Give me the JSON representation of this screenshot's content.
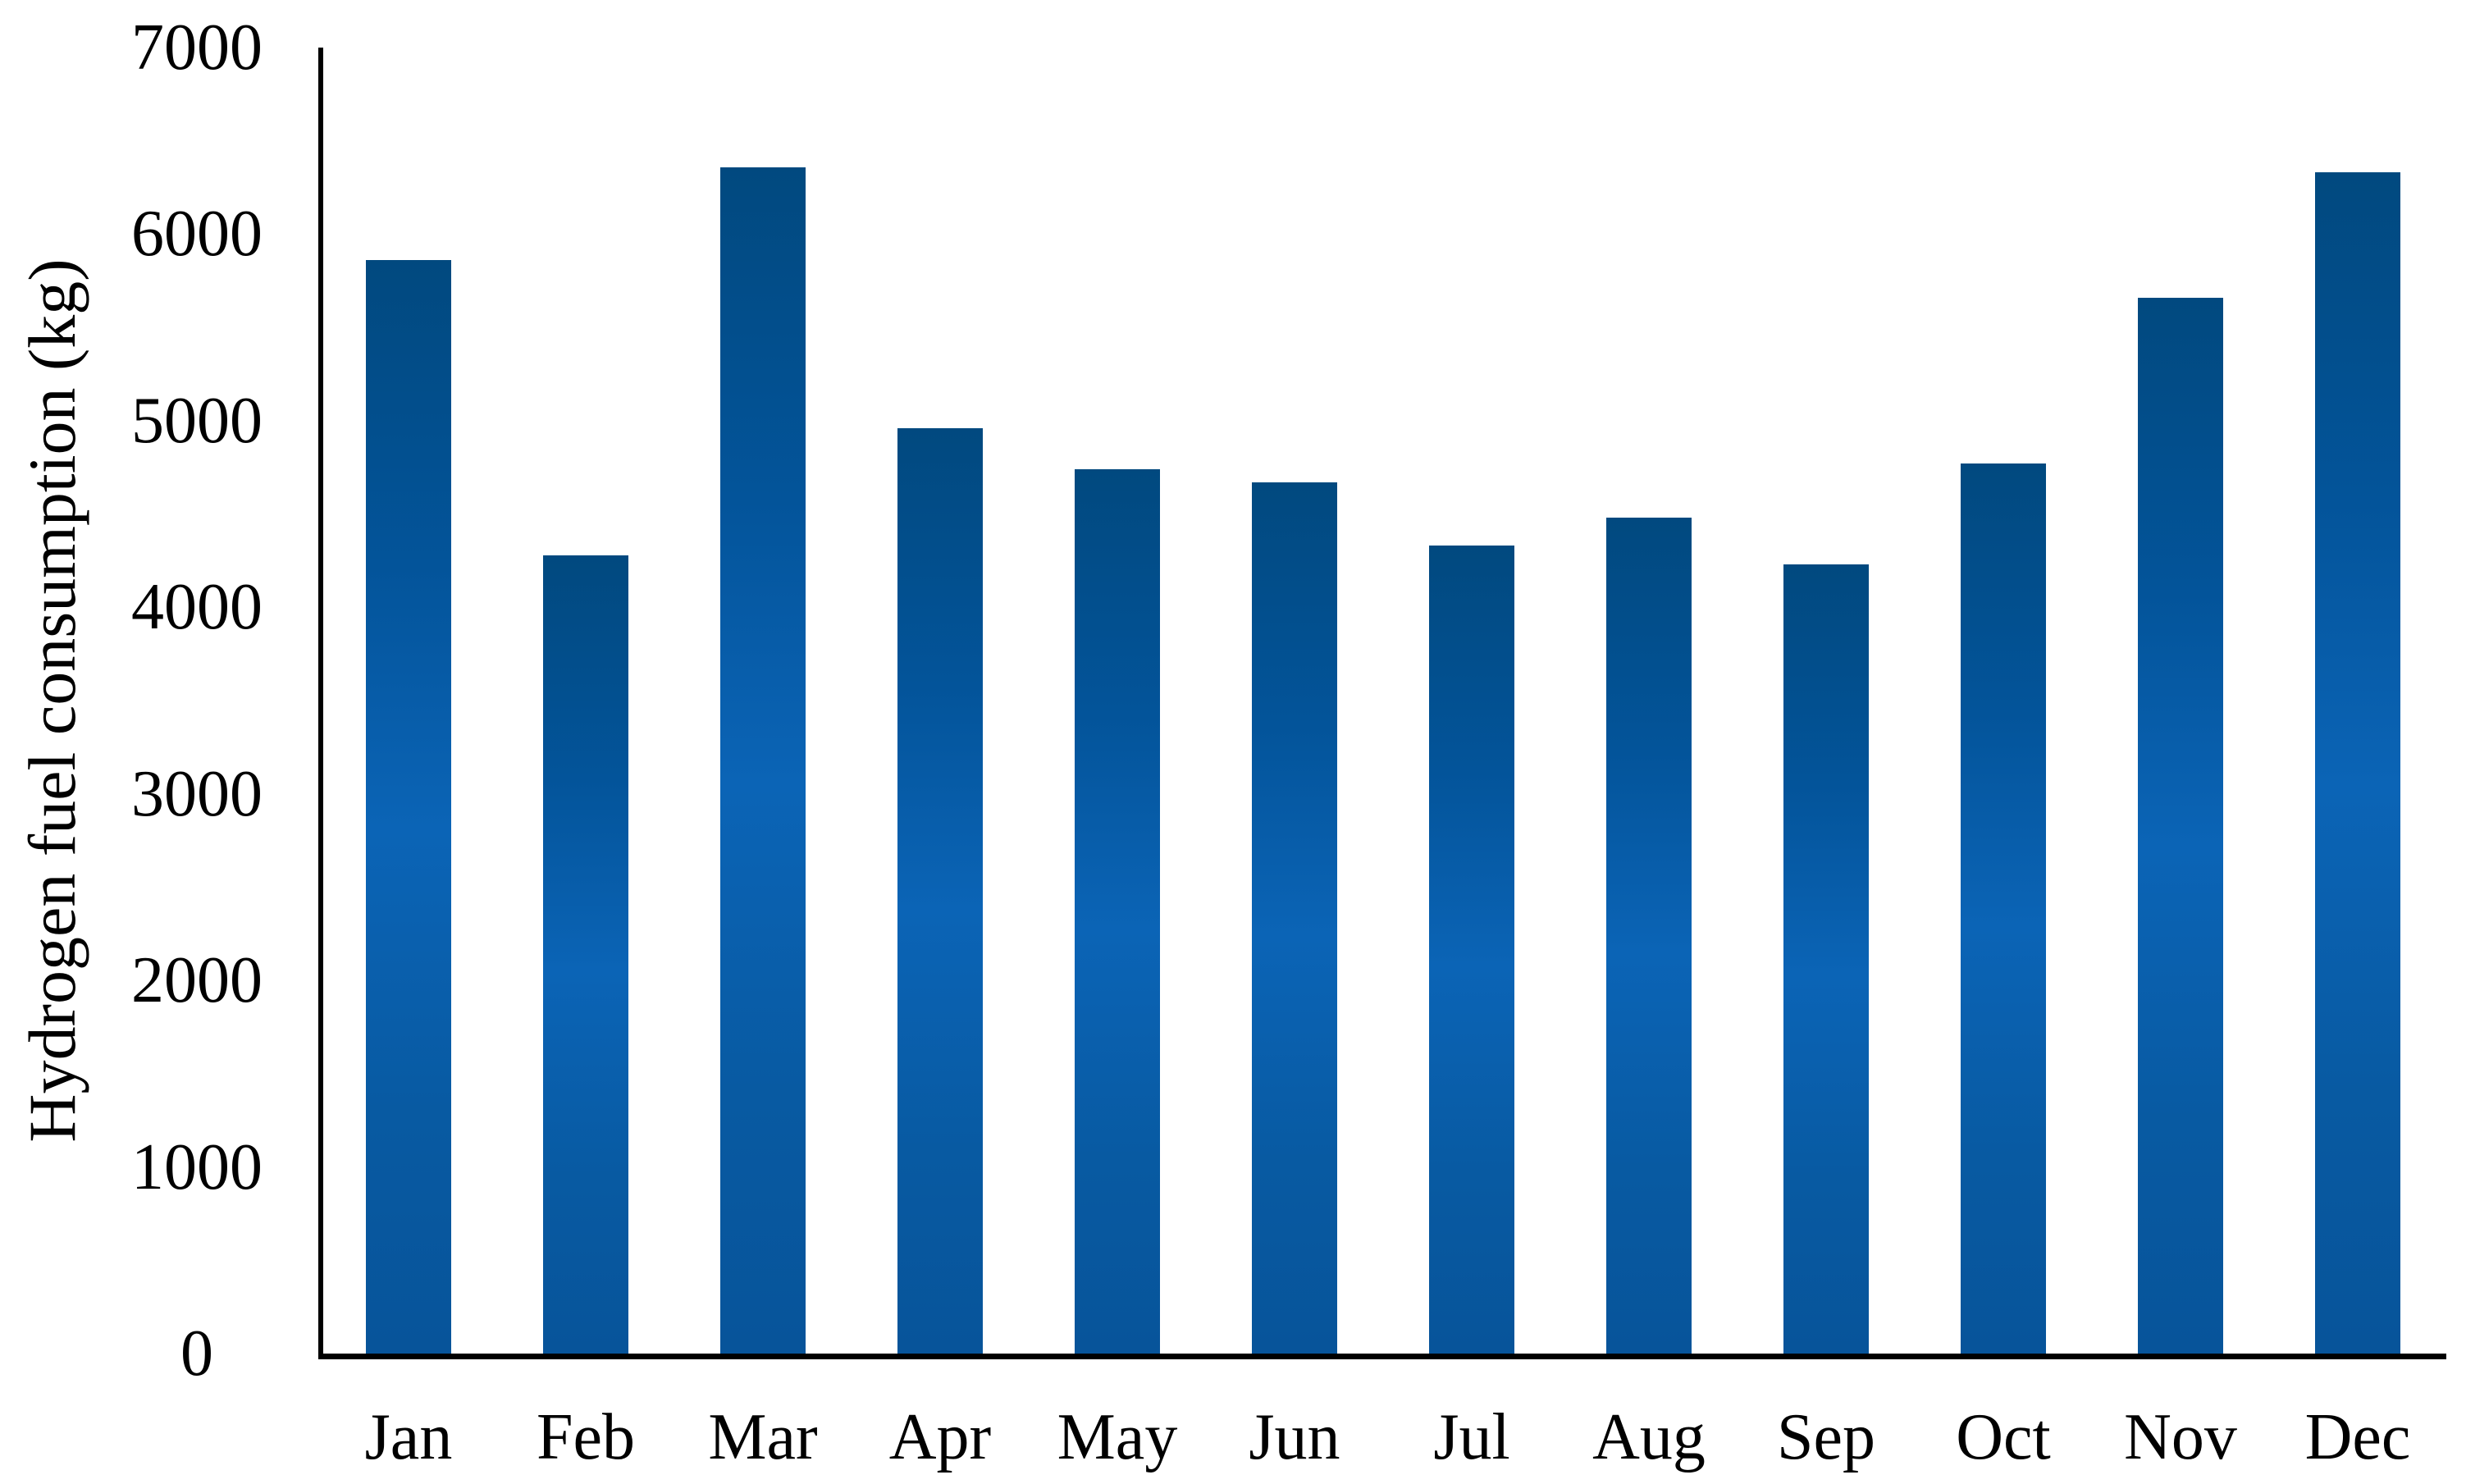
{
  "chart_data": {
    "type": "bar",
    "title": "",
    "xlabel": "",
    "ylabel": "Hydrogen fuel consumption (kg)",
    "categories": [
      "Jan",
      "Feb",
      "Mar",
      "Apr",
      "May",
      "Jun",
      "Jul",
      "Aug",
      "Sep",
      "Oct",
      "Nov",
      "Dec"
    ],
    "values": [
      5860,
      4280,
      6360,
      4960,
      4740,
      4670,
      4330,
      4480,
      4230,
      4770,
      5660,
      6330
    ],
    "ylim": [
      0,
      7000
    ],
    "ytick_interval": 1000,
    "yticks": [
      "0",
      "1000",
      "2000",
      "3000",
      "4000",
      "5000",
      "6000",
      "7000"
    ],
    "grid": false,
    "legend": "none",
    "colors": {
      "bar_gradient_top": "#01497f",
      "bar_gradient_upper": "#03549a",
      "bar_gradient_mid": "#0b64b6",
      "bar_gradient_lower": "#085aa2",
      "bar_gradient_bottom": "#07549a",
      "axis": "#000000",
      "text": "#000000",
      "background": "#ffffff"
    }
  }
}
